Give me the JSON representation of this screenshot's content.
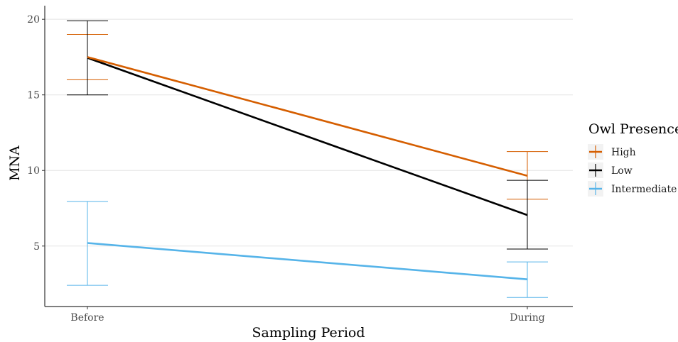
{
  "chart_data": {
    "type": "line",
    "xlabel": "Sampling Period",
    "ylabel": "MNA",
    "categories": [
      "Before",
      "During"
    ],
    "y_ticks": [
      "5",
      "10",
      "15",
      "20"
    ],
    "ylim": [
      1.0,
      20.9
    ],
    "grid": "horizontal major",
    "legend_title": "Owl Presence",
    "legend_position": "right",
    "series": [
      {
        "name": "High",
        "color": "#d55e00",
        "values": [
          17.5,
          9.65
        ],
        "lower": [
          16.0,
          8.1
        ],
        "upper": [
          19.0,
          11.25
        ]
      },
      {
        "name": "Low",
        "color": "#000000",
        "values": [
          17.45,
          7.05
        ],
        "lower": [
          15.0,
          4.8
        ],
        "upper": [
          19.9,
          9.35
        ]
      },
      {
        "name": "Intermediate",
        "color": "#56b4e9",
        "values": [
          5.2,
          2.8
        ],
        "lower": [
          2.4,
          1.6
        ],
        "upper": [
          7.95,
          3.95
        ]
      }
    ]
  }
}
